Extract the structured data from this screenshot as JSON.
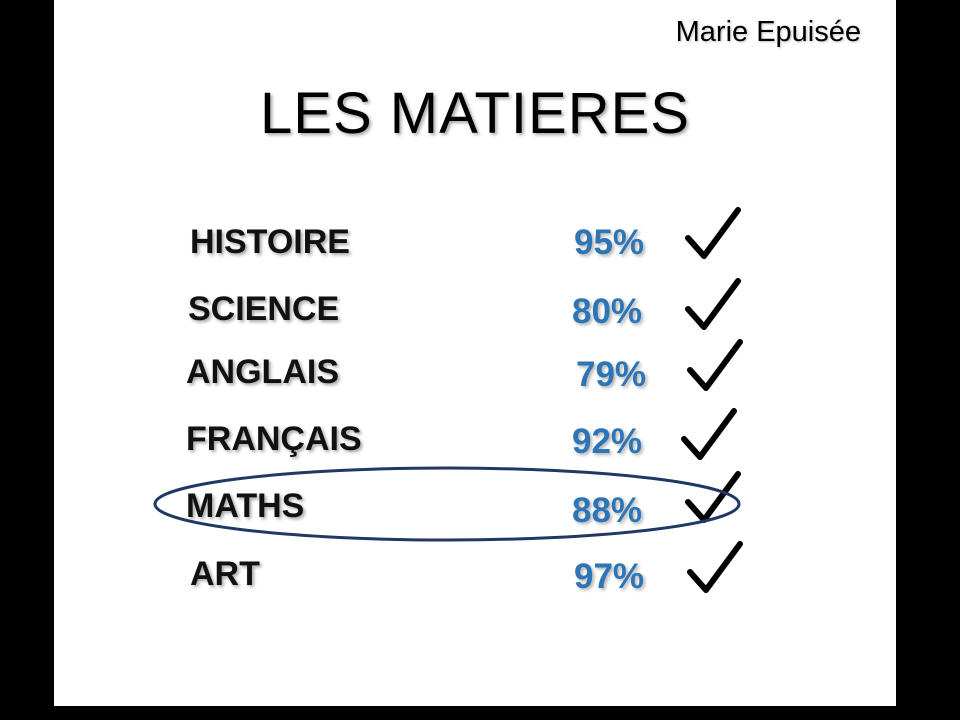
{
  "author": "Marie Epuisée",
  "title": "LES MATIERES",
  "colors": {
    "score": "#2e75b6",
    "ellipse": "#1f3864",
    "check": "#000000"
  },
  "subjects": [
    {
      "name": "HISTOIRE",
      "score": "95%",
      "checked": true,
      "icon": "checkmark-icon"
    },
    {
      "name": "SCIENCE",
      "score": "80%",
      "checked": true,
      "icon": "checkmark-icon"
    },
    {
      "name": "ANGLAIS",
      "score": "79%",
      "checked": true,
      "icon": "checkmark-icon"
    },
    {
      "name": "FRANÇAIS",
      "score": "92%",
      "checked": true,
      "icon": "checkmark-icon"
    },
    {
      "name": "MATHS",
      "score": "88%",
      "checked": true,
      "icon": "checkmark-icon",
      "highlighted": true
    },
    {
      "name": "ART",
      "score": "97%",
      "checked": true,
      "icon": "checkmark-icon"
    }
  ]
}
